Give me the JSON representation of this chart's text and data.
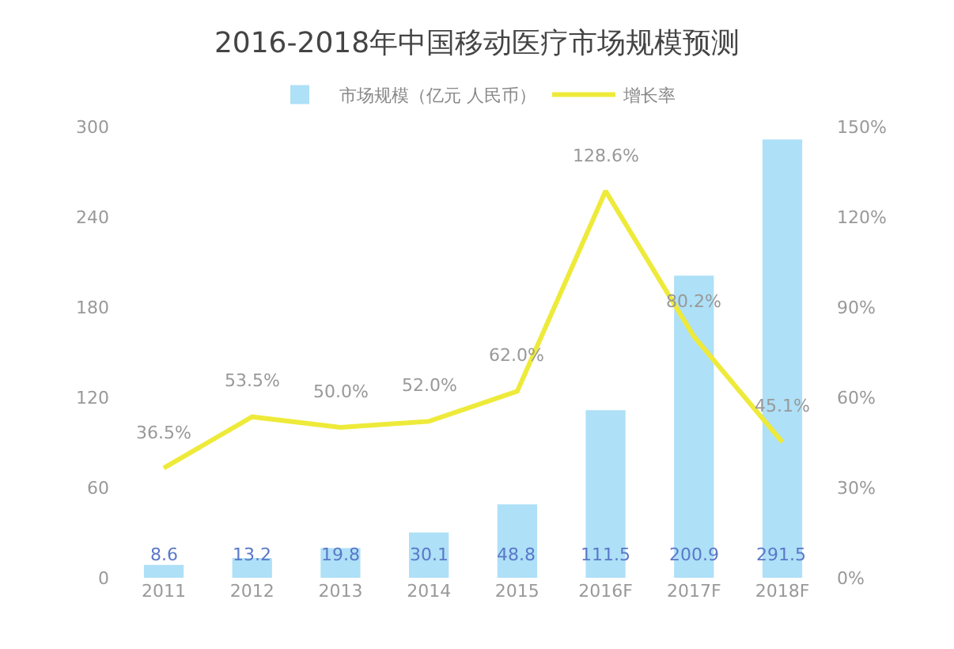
{
  "chart_data": {
    "type": "bar",
    "title": "2016-2018年中国移动医疗市场规模预测",
    "categories": [
      "2011",
      "2012",
      "2013",
      "2014",
      "2015",
      "2016F",
      "2017F",
      "2018F"
    ],
    "series": [
      {
        "name": "市场规模（亿元 人民币）",
        "color": "#aee0f7",
        "values": [
          8.6,
          13.2,
          19.8,
          30.1,
          48.8,
          111.5,
          200.9,
          291.5
        ],
        "value_labels": [
          "8.6",
          "13.2",
          "19.8",
          "30.1",
          "48.8",
          "111.5",
          "200.9",
          "291.5"
        ]
      },
      {
        "name": "增长率",
        "type": "line",
        "axis": "y2",
        "color": "#eeea3a",
        "values": [
          36.5,
          53.5,
          50.0,
          52.0,
          62.0,
          128.6,
          80.2,
          45.1
        ],
        "value_labels": [
          "36.5%",
          "53.5%",
          "50.0%",
          "52.0%",
          "62.0%",
          "128.6%",
          "80.2%",
          "45.1%"
        ]
      }
    ],
    "ylim": [
      0,
      300
    ],
    "yticks": [
      0,
      60,
      120,
      180,
      240,
      300
    ],
    "y2lim": [
      0,
      150
    ],
    "y2ticks": [
      {
        "value": 0,
        "label": "0%"
      },
      {
        "value": 30,
        "label": "30%"
      },
      {
        "value": 60,
        "label": "60%"
      },
      {
        "value": 90,
        "label": "90%"
      },
      {
        "value": 120,
        "label": "120%"
      },
      {
        "value": 150,
        "label": "150%"
      }
    ],
    "legend": "top",
    "grid": false,
    "marker": "none",
    "line_style": "solid"
  }
}
